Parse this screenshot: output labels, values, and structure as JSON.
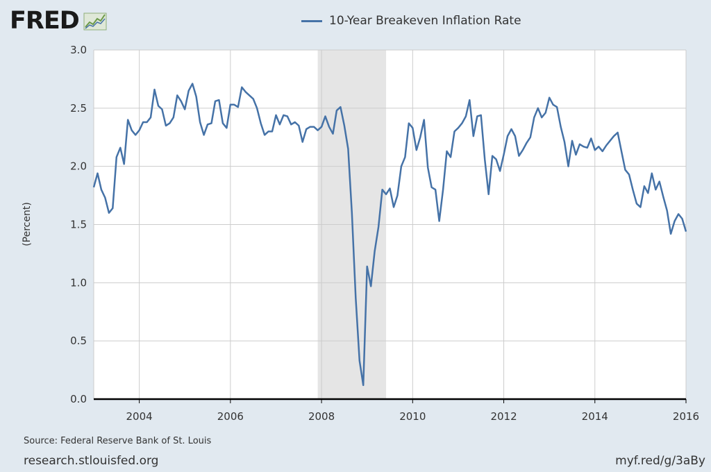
{
  "logo": {
    "text": "FRED"
  },
  "chart_data": {
    "type": "line",
    "title": "",
    "legend": "top-center",
    "ylabel": "(Percent)",
    "xlabel": "",
    "ylim": [
      0,
      3.0
    ],
    "xlim": [
      "2003-01",
      "2016-01"
    ],
    "y_ticks": [
      "0.0",
      "0.5",
      "1.0",
      "1.5",
      "2.0",
      "2.5",
      "3.0"
    ],
    "x_ticks": [
      "2004",
      "2006",
      "2008",
      "2010",
      "2012",
      "2014",
      "2016"
    ],
    "grid": true,
    "recession_shading": [
      [
        "2007-12",
        "2009-06"
      ]
    ],
    "series": [
      {
        "name": "10-Year Breakeven Inflation Rate",
        "color": "#4572a7",
        "x": [
          "2003-01",
          "2003-02",
          "2003-03",
          "2003-04",
          "2003-05",
          "2003-06",
          "2003-07",
          "2003-08",
          "2003-09",
          "2003-10",
          "2003-11",
          "2003-12",
          "2004-01",
          "2004-02",
          "2004-03",
          "2004-04",
          "2004-05",
          "2004-06",
          "2004-07",
          "2004-08",
          "2004-09",
          "2004-10",
          "2004-11",
          "2004-12",
          "2005-01",
          "2005-02",
          "2005-03",
          "2005-04",
          "2005-05",
          "2005-06",
          "2005-07",
          "2005-08",
          "2005-09",
          "2005-10",
          "2005-11",
          "2005-12",
          "2006-01",
          "2006-02",
          "2006-03",
          "2006-04",
          "2006-05",
          "2006-06",
          "2006-07",
          "2006-08",
          "2006-09",
          "2006-10",
          "2006-11",
          "2006-12",
          "2007-01",
          "2007-02",
          "2007-03",
          "2007-04",
          "2007-05",
          "2007-06",
          "2007-07",
          "2007-08",
          "2007-09",
          "2007-10",
          "2007-11",
          "2007-12",
          "2008-01",
          "2008-02",
          "2008-03",
          "2008-04",
          "2008-05",
          "2008-06",
          "2008-07",
          "2008-08",
          "2008-09",
          "2008-10",
          "2008-11",
          "2008-12",
          "2009-01",
          "2009-02",
          "2009-03",
          "2009-04",
          "2009-05",
          "2009-06",
          "2009-07",
          "2009-08",
          "2009-09",
          "2009-10",
          "2009-11",
          "2009-12",
          "2010-01",
          "2010-02",
          "2010-03",
          "2010-04",
          "2010-05",
          "2010-06",
          "2010-07",
          "2010-08",
          "2010-09",
          "2010-10",
          "2010-11",
          "2010-12",
          "2011-01",
          "2011-02",
          "2011-03",
          "2011-04",
          "2011-05",
          "2011-06",
          "2011-07",
          "2011-08",
          "2011-09",
          "2011-10",
          "2011-11",
          "2011-12",
          "2012-01",
          "2012-02",
          "2012-03",
          "2012-04",
          "2012-05",
          "2012-06",
          "2012-07",
          "2012-08",
          "2012-09",
          "2012-10",
          "2012-11",
          "2012-12",
          "2013-01",
          "2013-02",
          "2013-03",
          "2013-04",
          "2013-05",
          "2013-06",
          "2013-07",
          "2013-08",
          "2013-09",
          "2013-10",
          "2013-11",
          "2013-12",
          "2014-01",
          "2014-02",
          "2014-03",
          "2014-04",
          "2014-05",
          "2014-06",
          "2014-07",
          "2014-08",
          "2014-09",
          "2014-10",
          "2014-11",
          "2014-12",
          "2015-01",
          "2015-02",
          "2015-03",
          "2015-04",
          "2015-05",
          "2015-06",
          "2015-07",
          "2015-08",
          "2015-09",
          "2015-10",
          "2015-11",
          "2015-12",
          "2016-01"
        ],
        "values": [
          1.82,
          1.94,
          1.8,
          1.73,
          1.6,
          1.64,
          2.08,
          2.16,
          2.02,
          2.4,
          2.31,
          2.27,
          2.31,
          2.38,
          2.38,
          2.42,
          2.66,
          2.52,
          2.49,
          2.35,
          2.37,
          2.42,
          2.61,
          2.56,
          2.49,
          2.65,
          2.71,
          2.6,
          2.38,
          2.27,
          2.36,
          2.37,
          2.56,
          2.57,
          2.37,
          2.33,
          2.53,
          2.53,
          2.51,
          2.68,
          2.64,
          2.61,
          2.58,
          2.5,
          2.37,
          2.27,
          2.3,
          2.3,
          2.44,
          2.36,
          2.44,
          2.43,
          2.36,
          2.38,
          2.35,
          2.21,
          2.32,
          2.34,
          2.34,
          2.31,
          2.34,
          2.43,
          2.34,
          2.28,
          2.48,
          2.51,
          2.35,
          2.15,
          1.6,
          0.87,
          0.33,
          0.12,
          1.14,
          0.97,
          1.27,
          1.48,
          1.8,
          1.76,
          1.81,
          1.65,
          1.75,
          2.0,
          2.08,
          2.37,
          2.33,
          2.14,
          2.25,
          2.4,
          1.99,
          1.82,
          1.8,
          1.53,
          1.8,
          2.13,
          2.08,
          2.3,
          2.33,
          2.37,
          2.43,
          2.57,
          2.26,
          2.43,
          2.44,
          2.06,
          1.76,
          2.09,
          2.06,
          1.96,
          2.1,
          2.26,
          2.32,
          2.26,
          2.09,
          2.14,
          2.2,
          2.25,
          2.42,
          2.5,
          2.42,
          2.46,
          2.59,
          2.53,
          2.51,
          2.34,
          2.21,
          2.0,
          2.22,
          2.1,
          2.19,
          2.17,
          2.16,
          2.24,
          2.14,
          2.17,
          2.13,
          2.18,
          2.22,
          2.26,
          2.29,
          2.13,
          1.97,
          1.93,
          1.8,
          1.68,
          1.65,
          1.83,
          1.77,
          1.94,
          1.8,
          1.87,
          1.74,
          1.62,
          1.42,
          1.53,
          1.59,
          1.55,
          1.44
        ]
      }
    ]
  },
  "footer": {
    "source": "Source: Federal Reserve Bank of St. Louis",
    "site": "research.stlouisfed.org",
    "short_url": "myf.red/g/3aBy"
  }
}
